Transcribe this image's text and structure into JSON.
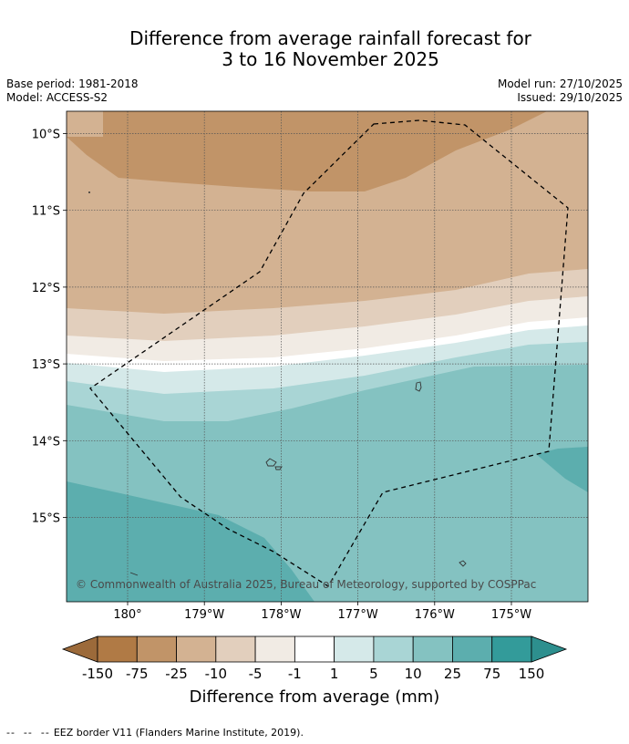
{
  "chart_data": {
    "type": "filled-contour-map",
    "title_line1": "Difference from average rainfall forecast for",
    "title_line2": "3 to 16 November 2025",
    "base_period": "Base period: 1981-2018",
    "model": "Model: ACCESS-S2",
    "model_run": "Model run: 27/10/2025",
    "issued": "Issued: 29/10/2025",
    "x_ticks": [
      "180°",
      "179°W",
      "178°W",
      "177°W",
      "176°W",
      "175°W"
    ],
    "x_tick_values": [
      180,
      -179,
      -178,
      -177,
      -176,
      -175
    ],
    "y_ticks": [
      "10°S",
      "11°S",
      "12°S",
      "13°S",
      "14°S",
      "15°S"
    ],
    "y_tick_values": [
      -10,
      -11,
      -12,
      -13,
      -14,
      -15
    ],
    "copyright": "© Commonwealth of Australia 2025, Bureau of Meteorology, supported by COSPPac",
    "colorbar": {
      "label": "Difference from average (mm)",
      "boundaries": [
        "-150",
        "-75",
        "-25",
        "-10",
        "-5",
        "-1",
        "1",
        "5",
        "10",
        "25",
        "75",
        "150"
      ],
      "colors": [
        "#9c6a3a",
        "#b07a45",
        "#c19468",
        "#d3b292",
        "#e2cfbd",
        "#f1ebe4",
        "#ffffff",
        "#d5e9e9",
        "#a9d5d5",
        "#84c2c1",
        "#5caeae",
        "#339b9a",
        "#2d8f8e"
      ]
    },
    "footer": "EEZ border V11 (Flanders Marine Institute, 2019)."
  }
}
